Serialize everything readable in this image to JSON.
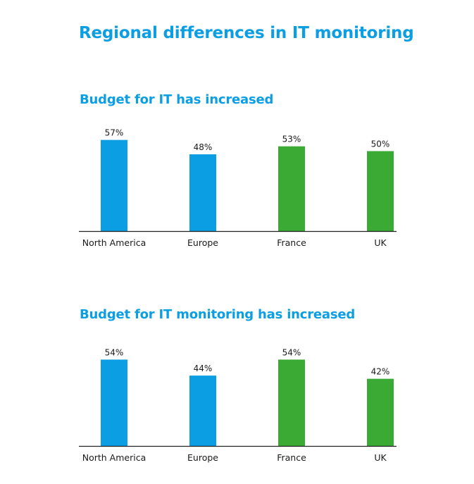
{
  "title": "Regional differences in IT monitoring",
  "colors": {
    "title": "#0b9ee3",
    "blue_bar": "#0b9ee3",
    "green_bar": "#3aaa35",
    "axis": "#222222"
  },
  "chart_data": [
    {
      "type": "bar",
      "title": "Budget for IT has increased",
      "categories": [
        "North America",
        "Europe",
        "France",
        "UK"
      ],
      "values": [
        57,
        48,
        53,
        50
      ],
      "data_labels": [
        "57%",
        "48%",
        "53%",
        "50%"
      ],
      "bar_colors": [
        "#0b9ee3",
        "#0b9ee3",
        "#3aaa35",
        "#3aaa35"
      ],
      "unit": "%",
      "ylim": [
        0,
        60
      ],
      "grid": false,
      "legend": "none"
    },
    {
      "type": "bar",
      "title": "Budget for IT monitoring has increased",
      "categories": [
        "North America",
        "Europe",
        "France",
        "UK"
      ],
      "values": [
        54,
        44,
        54,
        42
      ],
      "data_labels": [
        "54%",
        "44%",
        "54%",
        "42%"
      ],
      "bar_colors": [
        "#0b9ee3",
        "#0b9ee3",
        "#3aaa35",
        "#3aaa35"
      ],
      "unit": "%",
      "ylim": [
        0,
        60
      ],
      "grid": false,
      "legend": "none"
    }
  ]
}
